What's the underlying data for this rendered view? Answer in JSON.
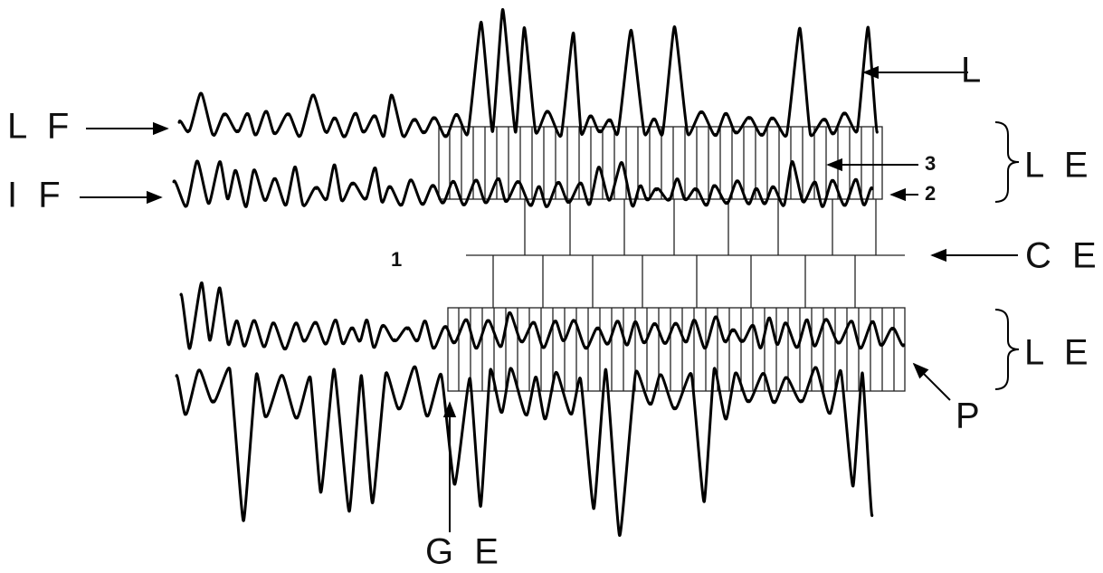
{
  "labels": {
    "lf": "L F",
    "if": "I F",
    "l": "L",
    "three": "3",
    "two": "2",
    "le_top": "L E",
    "one": "1",
    "ce": "C E",
    "le_bottom": "L E",
    "p": "P",
    "ge": "G E"
  }
}
